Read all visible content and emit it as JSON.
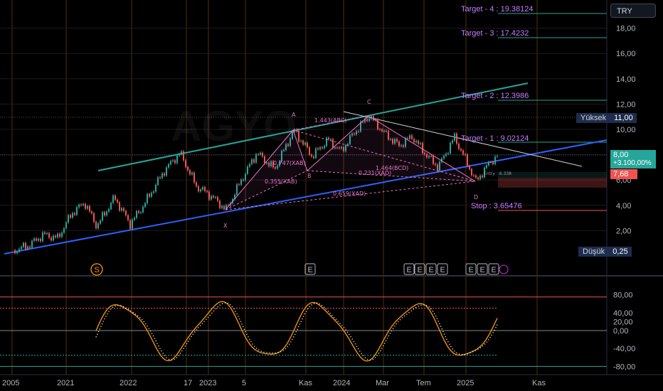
{
  "symbol": "AGYO",
  "currency": "TRY",
  "price_axis": {
    "main_ticks": [
      "18,00",
      "16,00",
      "14,00",
      "12,00",
      "10,00",
      "8,00",
      "6,00",
      "4,00",
      "2,00"
    ],
    "osc_ticks": [
      "80,00",
      "40,00",
      "20,00",
      "0,00",
      "-40,00",
      "-80,00"
    ]
  },
  "badges": {
    "high_label": "Yüksek",
    "high_value": "11,00",
    "low_label": "Düşük",
    "low_value": "0,25",
    "last_price": "8,00",
    "last_change": "+3.100,00%",
    "prev_price": "7,68"
  },
  "targets": [
    {
      "text": "Target - 4 : 19.38124"
    },
    {
      "text": "Target - 3 : 17.4232"
    },
    {
      "text": "Target - 2 : 12.3986"
    },
    {
      "text": "Target - 1 : 9.02124"
    },
    {
      "text": "Stop : 3.65476"
    }
  ],
  "pattern_labels": {
    "X": "X",
    "A": "A",
    "B": "B",
    "C": "C",
    "D": "D",
    "abc": "1.443(ABC)",
    "xab": "0.355(XAB)",
    "xad": "0.659(XAD)",
    "xab2": "0.747(XAB)",
    "bcd": "1.464(BCD)",
    "xad2": "0.231(XAD)",
    "entry": "Entry : 6.338"
  },
  "event_markers": [
    "S",
    "E",
    "E",
    "E",
    "E",
    "E",
    "E",
    "E",
    "E"
  ],
  "time_axis": [
    "2005",
    "2021",
    "2022",
    "17",
    "2023",
    "5",
    "Kas",
    "2024",
    "Mar",
    "Tem",
    "2025",
    "Kas"
  ],
  "colors": {
    "up": "#26a69a",
    "down": "#ef5350",
    "trend_blue": "#2962ff",
    "trend_green": "#26a69a",
    "pattern": "#e875c8",
    "target": "#c77dff",
    "orange_grid": "#b8651a",
    "osc_line": "#ff9800",
    "osc_hist": "#2a2ad6"
  }
}
